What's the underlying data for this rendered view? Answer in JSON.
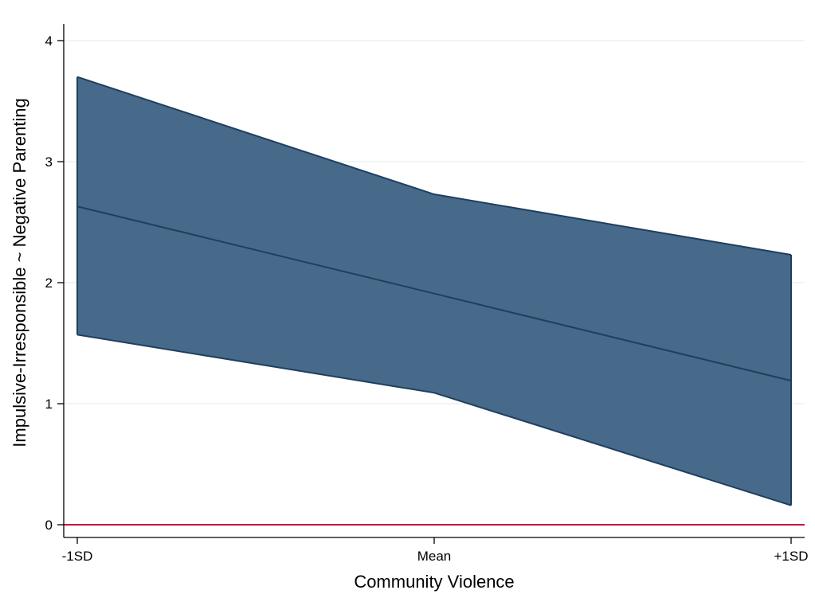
{
  "chart_data": {
    "type": "area",
    "title": "",
    "xlabel": "Community Violence",
    "ylabel": "Impulsive-Irresponsible ~ Negative Parenting",
    "categories": [
      "-1SD",
      "Mean",
      "+1SD"
    ],
    "x": [
      -1,
      0,
      1
    ],
    "xlim": [
      -1,
      1
    ],
    "ylim": [
      0,
      4
    ],
    "yticks": [
      0,
      1,
      2,
      3,
      4
    ],
    "grid": true,
    "estimate": [
      2.63,
      1.91,
      1.19
    ],
    "ci_lower": [
      1.57,
      1.09,
      0.16
    ],
    "ci_upper": [
      3.7,
      2.73,
      2.23
    ],
    "reference_line_y": 0,
    "colors": {
      "band_fill": "#476a8a",
      "band_edge": "#1f3f5f",
      "estimate_line": "#1f3f5f",
      "reference_line": "#c8103c",
      "grid": "#e8eef2"
    }
  }
}
